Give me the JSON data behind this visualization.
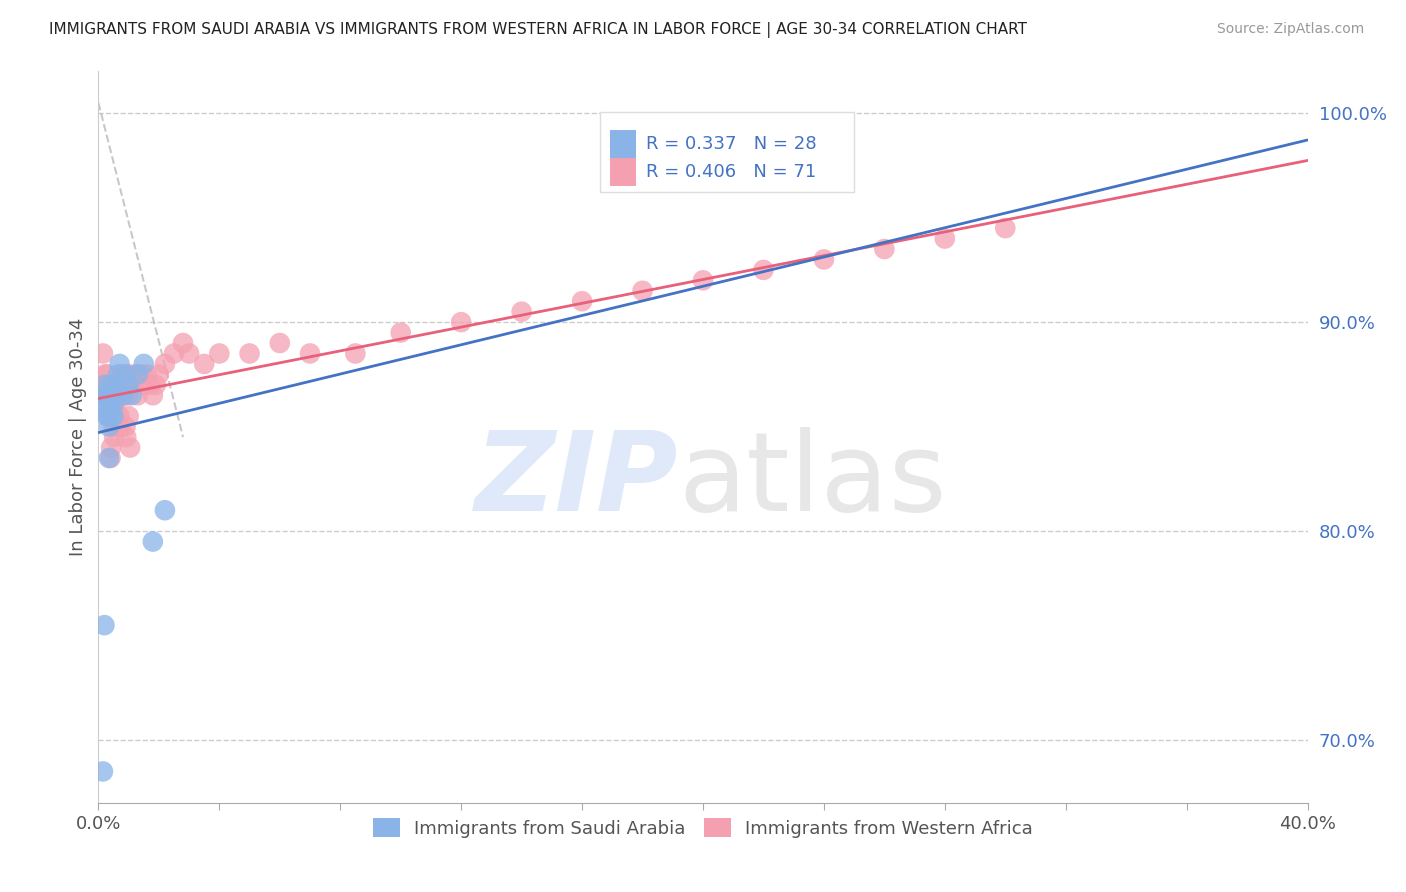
{
  "title": "IMMIGRANTS FROM SAUDI ARABIA VS IMMIGRANTS FROM WESTERN AFRICA IN LABOR FORCE | AGE 30-34 CORRELATION CHART",
  "source": "Source: ZipAtlas.com",
  "ylabel": "In Labor Force | Age 30-34",
  "xlim": [
    0.0,
    40.0
  ],
  "ylim": [
    67.0,
    102.0
  ],
  "xticks": [
    0.0,
    4.0,
    8.0,
    12.0,
    16.0,
    20.0,
    24.0,
    28.0,
    32.0,
    36.0,
    40.0
  ],
  "xtick_labels_show": [
    "0.0%",
    "",
    "",
    "",
    "",
    "",
    "",
    "",
    "",
    "",
    "40.0%"
  ],
  "yticks": [
    70.0,
    80.0,
    90.0,
    100.0
  ],
  "ytick_labels": [
    "70.0%",
    "80.0%",
    "90.0%",
    "100.0%"
  ],
  "legend_r_saudi": "R = 0.337",
  "legend_n_saudi": "N = 28",
  "legend_r_western": "R = 0.406",
  "legend_n_western": "N = 71",
  "saudi_color": "#8ab4e8",
  "western_color": "#f4a0b0",
  "saudi_line_color": "#4472C4",
  "western_line_color": "#e8607a",
  "background_color": "#ffffff",
  "saudi_x": [
    0.15,
    0.18,
    0.22,
    0.25,
    0.28,
    0.3,
    0.32,
    0.35,
    0.38,
    0.4,
    0.43,
    0.45,
    0.48,
    0.5,
    0.55,
    0.6,
    0.65,
    0.7,
    0.8,
    0.9,
    1.0,
    1.1,
    1.3,
    1.5,
    1.8,
    2.2,
    0.2,
    0.35
  ],
  "saudi_y": [
    68.5,
    86.5,
    87.0,
    86.5,
    85.5,
    86.0,
    85.5,
    85.0,
    86.0,
    85.5,
    86.5,
    87.0,
    86.0,
    85.5,
    87.0,
    86.5,
    87.5,
    88.0,
    86.5,
    87.5,
    87.0,
    86.5,
    87.5,
    88.0,
    79.5,
    81.0,
    75.5,
    83.5
  ],
  "western_x": [
    0.1,
    0.13,
    0.15,
    0.18,
    0.2,
    0.22,
    0.25,
    0.28,
    0.3,
    0.32,
    0.35,
    0.38,
    0.4,
    0.43,
    0.45,
    0.48,
    0.5,
    0.55,
    0.58,
    0.6,
    0.63,
    0.65,
    0.68,
    0.7,
    0.75,
    0.8,
    0.85,
    0.9,
    0.95,
    1.0,
    1.1,
    1.2,
    1.3,
    1.4,
    1.5,
    1.6,
    1.7,
    1.8,
    1.9,
    2.0,
    2.2,
    2.5,
    2.8,
    3.0,
    3.5,
    4.0,
    5.0,
    6.0,
    7.0,
    8.5,
    10.0,
    12.0,
    14.0,
    16.0,
    18.0,
    20.0,
    22.0,
    24.0,
    26.0,
    28.0,
    30.0,
    0.4,
    0.42,
    0.5,
    0.52,
    0.7,
    0.72,
    0.9,
    0.92,
    1.0,
    1.05
  ],
  "western_y": [
    86.5,
    86.0,
    88.5,
    87.0,
    86.5,
    87.5,
    87.0,
    87.5,
    86.5,
    87.0,
    86.5,
    85.5,
    86.0,
    86.5,
    87.0,
    85.5,
    86.5,
    86.0,
    87.0,
    86.5,
    87.0,
    86.5,
    87.0,
    86.5,
    87.5,
    87.0,
    86.5,
    87.0,
    86.5,
    87.5,
    87.0,
    87.5,
    86.5,
    87.5,
    87.0,
    87.5,
    87.0,
    86.5,
    87.0,
    87.5,
    88.0,
    88.5,
    89.0,
    88.5,
    88.0,
    88.5,
    88.5,
    89.0,
    88.5,
    88.5,
    89.5,
    90.0,
    90.5,
    91.0,
    91.5,
    92.0,
    92.5,
    93.0,
    93.5,
    94.0,
    94.5,
    83.5,
    84.0,
    85.0,
    84.5,
    85.5,
    85.0,
    85.0,
    84.5,
    85.5,
    84.0
  ],
  "ref_line_x": [
    0.0,
    2.8
  ],
  "ref_line_y": [
    100.5,
    84.5
  ]
}
